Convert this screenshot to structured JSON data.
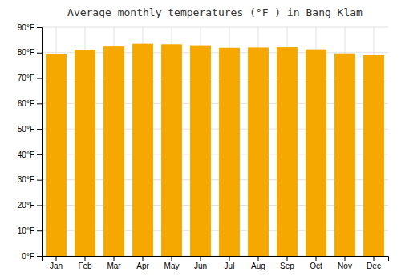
{
  "chart_data": {
    "type": "bar",
    "title": "Average monthly temperatures (°F ) in Bang Klam",
    "categories": [
      "Jan",
      "Feb",
      "Mar",
      "Apr",
      "May",
      "Jun",
      "Jul",
      "Aug",
      "Sep",
      "Oct",
      "Nov",
      "Dec"
    ],
    "values": [
      79.3,
      81.1,
      82.4,
      83.5,
      83.3,
      82.9,
      81.9,
      82.0,
      82.1,
      81.3,
      79.7,
      79.0
    ],
    "color": "#F5A800",
    "ylim": [
      0,
      90
    ],
    "yticks": [
      {
        "value": 0,
        "label": "0°F"
      },
      {
        "value": 10,
        "label": "10°F"
      },
      {
        "value": 20,
        "label": "20°F"
      },
      {
        "value": 30,
        "label": "30°F"
      },
      {
        "value": 40,
        "label": "40°F"
      },
      {
        "value": 50,
        "label": "50°F"
      },
      {
        "value": 60,
        "label": "60°F"
      },
      {
        "value": 70,
        "label": "70°F"
      },
      {
        "value": 80,
        "label": "80°F"
      },
      {
        "value": 90,
        "label": "90°F"
      }
    ],
    "grid": true
  }
}
